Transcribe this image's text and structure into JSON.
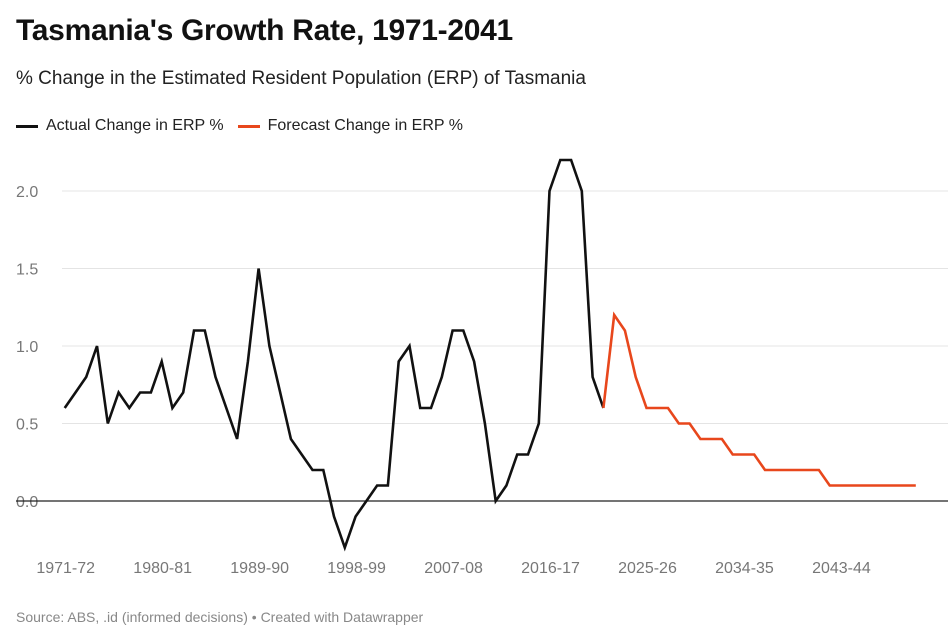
{
  "header": {
    "title": "Tasmania's Growth Rate, 1971-2041",
    "subtitle": "% Change in the Estimated Resident Population (ERP) of Tasmania"
  },
  "legend": [
    {
      "label": "Actual Change in ERP %",
      "color": "#111111"
    },
    {
      "label": "Forecast Change in ERP %",
      "color": "#e8471c"
    }
  ],
  "footer": {
    "source": "Source: ABS, .id (informed decisions) • Created with Datawrapper"
  },
  "chart_data": {
    "type": "line",
    "title": "Tasmania's Growth Rate, 1971-2041",
    "subtitle": "% Change in the Estimated Resident Population (ERP) of Tasmania",
    "xlabel": "",
    "ylabel": "",
    "ylim": [
      -0.3,
      2.2
    ],
    "y_ticks": [
      0.0,
      0.5,
      1.0,
      1.5,
      2.0
    ],
    "y_tick_labels": [
      "0.0",
      "0.5",
      "1.0",
      "1.5",
      "2.0"
    ],
    "x_tick_labels": [
      "1971-72",
      "1980-81",
      "1989-90",
      "1998-99",
      "2007-08",
      "2016-17",
      "2025-26",
      "2034-35",
      "2043-44"
    ],
    "x_tick_years": [
      1971,
      1980,
      1989,
      1998,
      2007,
      2016,
      2025,
      2034,
      2043
    ],
    "x_range": [
      1971,
      2050
    ],
    "grid": true,
    "legend_position": "top-left",
    "series": [
      {
        "name": "Actual Change in ERP %",
        "color": "#111111",
        "x": [
          1971,
          1972,
          1973,
          1974,
          1975,
          1976,
          1977,
          1978,
          1979,
          1980,
          1981,
          1982,
          1983,
          1984,
          1985,
          1986,
          1987,
          1988,
          1989,
          1990,
          1991,
          1992,
          1993,
          1994,
          1995,
          1996,
          1997,
          1998,
          1999,
          2000,
          2001,
          2002,
          2003,
          2004,
          2005,
          2006,
          2007,
          2008,
          2009,
          2010,
          2011,
          2012,
          2013,
          2014,
          2015,
          2016,
          2017,
          2018,
          2019,
          2020,
          2021
        ],
        "y": [
          0.6,
          0.7,
          0.8,
          1.0,
          0.5,
          0.7,
          0.6,
          0.7,
          0.7,
          0.9,
          0.6,
          0.7,
          1.1,
          1.1,
          0.8,
          0.6,
          0.4,
          0.9,
          1.5,
          1.0,
          0.7,
          0.4,
          0.3,
          0.2,
          0.2,
          -0.1,
          -0.3,
          -0.1,
          0.0,
          0.1,
          0.1,
          0.9,
          1.0,
          0.6,
          0.6,
          0.8,
          1.1,
          1.1,
          0.9,
          0.5,
          0.0,
          0.1,
          0.3,
          0.3,
          0.5,
          2.0,
          2.2,
          2.2,
          2.0,
          0.8,
          0.6
        ]
      },
      {
        "name": "Forecast Change in ERP %",
        "color": "#e8471c",
        "x": [
          2021,
          2022,
          2023,
          2024,
          2025,
          2026,
          2027,
          2028,
          2029,
          2030,
          2031,
          2032,
          2033,
          2034,
          2035,
          2036,
          2037,
          2038,
          2039,
          2040,
          2041,
          2042,
          2043,
          2044,
          2045,
          2046,
          2047,
          2048,
          2049,
          2050
        ],
        "y": [
          0.6,
          1.2,
          1.1,
          0.8,
          0.6,
          0.6,
          0.6,
          0.5,
          0.5,
          0.4,
          0.4,
          0.4,
          0.3,
          0.3,
          0.3,
          0.2,
          0.2,
          0.2,
          0.2,
          0.2,
          0.2,
          0.1,
          0.1,
          0.1,
          0.1,
          0.1,
          0.1,
          0.1,
          0.1,
          0.1
        ]
      }
    ]
  }
}
